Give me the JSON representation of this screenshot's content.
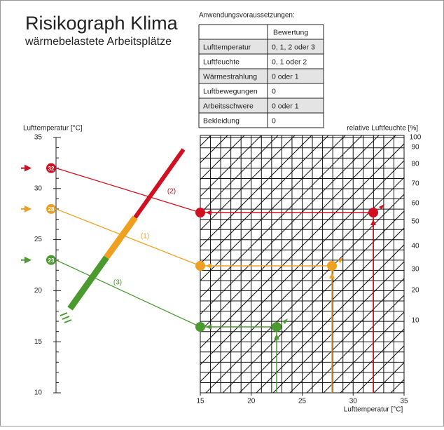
{
  "header": {
    "title": "Risikograph Klima",
    "subtitle": "wärmebelastete Arbeitsplätze"
  },
  "table": {
    "caption": "Anwendungsvoraussetzungen:",
    "column": "Bewertung",
    "rows": [
      [
        "Lufttemperatur",
        "0, 1, 2 oder 3"
      ],
      [
        "Luftfeuchte",
        "0, 1 oder 2"
      ],
      [
        "Wärmestrahlung",
        "0 oder 1"
      ],
      [
        "Luftbewegungen",
        "0"
      ],
      [
        "Arbeitsschwere",
        "0 oder 1"
      ],
      [
        "Bekleidung",
        "0"
      ]
    ]
  },
  "left_axis": {
    "label": "Lufttemperatur [°C]",
    "ticks": [
      10,
      15,
      20,
      25,
      30,
      35
    ]
  },
  "bottom_axis": {
    "label": "Lufttemperatur [°C]",
    "ticks": [
      15,
      20,
      25,
      30,
      35
    ]
  },
  "humidity_axis": {
    "label": "relative Luftfeuchte [%]",
    "ticks": [
      100,
      90,
      80,
      70,
      60,
      50,
      40,
      30,
      20,
      10
    ]
  },
  "paths": [
    {
      "label": "(2)",
      "start": 32,
      "color": "#d01020"
    },
    {
      "label": "(1)",
      "start": 28,
      "color": "#f0a020"
    },
    {
      "label": "(3)",
      "start": 23,
      "color": "#4a9a30"
    }
  ]
}
